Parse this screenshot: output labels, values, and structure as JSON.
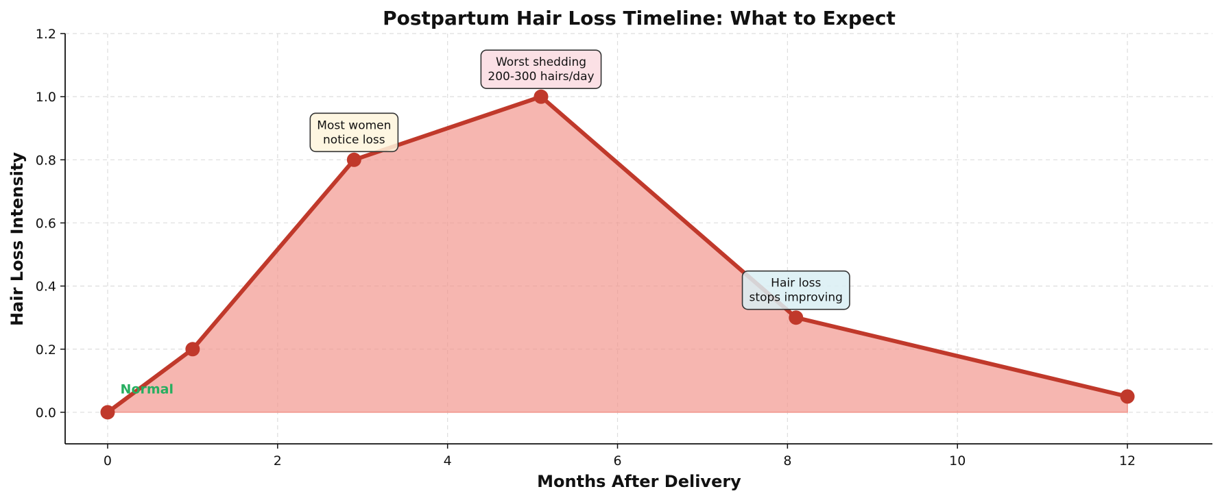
{
  "chart_data": {
    "type": "area",
    "title": "Postpartum Hair Loss Timeline: What to Expect",
    "xlabel": "Months After Delivery",
    "ylabel": "Hair Loss Intensity",
    "xlim": [
      -0.5,
      13
    ],
    "ylim": [
      -0.1,
      1.2
    ],
    "xticks": [
      0,
      2,
      4,
      6,
      8,
      10,
      12
    ],
    "yticks": [
      0.0,
      0.2,
      0.4,
      0.6,
      0.8,
      1.0,
      1.2
    ],
    "xtick_labels": [
      "0",
      "2",
      "4",
      "6",
      "8",
      "10",
      "12"
    ],
    "ytick_labels": [
      "0.0",
      "0.2",
      "0.4",
      "0.6",
      "0.8",
      "1.0",
      "1.2"
    ],
    "grid": true,
    "series": [
      {
        "x": [
          0,
          1,
          2.9,
          5.1,
          8.1,
          12
        ],
        "y": [
          0.0,
          0.2,
          0.8,
          1.0,
          0.3,
          0.05
        ],
        "color": "#c0392b",
        "fill_color": "#f1948a"
      }
    ],
    "annotations": [
      {
        "lines": [
          "Most women",
          "notice loss"
        ],
        "x": 2.9,
        "y": 0.8,
        "box_color": "#fef5dc"
      },
      {
        "lines": [
          "Worst shedding",
          "200-300 hairs/day"
        ],
        "x": 5.1,
        "y": 1.0,
        "box_color": "#fadbe0"
      },
      {
        "lines": [
          "Hair loss",
          "stops improving"
        ],
        "x": 8.1,
        "y": 0.3,
        "box_color": "#d9eff3"
      }
    ],
    "inline_labels": [
      {
        "text": "Normal",
        "x": 0.15,
        "y": 0.06,
        "color": "#27ae60"
      }
    ]
  }
}
